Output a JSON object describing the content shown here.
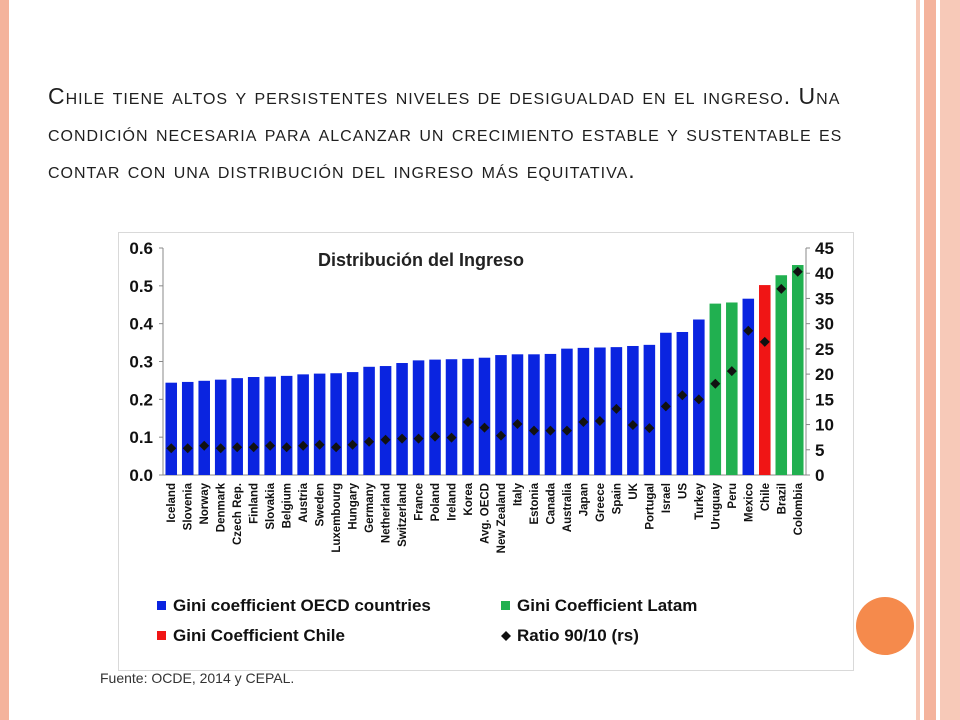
{
  "slide": {
    "title": "Chile tiene altos y persistentes niveles de desigualdad en el ingreso. Una condición necesaria para alcanzar un crecimiento estable y sustentable es contar con una distribución del ingreso más equitativa.",
    "source": "Fuente: OCDE, 2014 y CEPAL.",
    "colors": {
      "accent_border": "#f4b39c",
      "circle": "#f58a4c"
    }
  },
  "chart_data": {
    "type": "bar",
    "title": "Distribución del Ingreso",
    "categories": [
      "Iceland",
      "Slovenia",
      "Norway",
      "Denmark",
      "Czech Rep.",
      "Finland",
      "Slovakia",
      "Belgium",
      "Austria",
      "Sweden",
      "Luxembourg",
      "Hungary",
      "Germany",
      "Netherland",
      "Switzerland",
      "France",
      "Poland",
      "Ireland",
      "Korea",
      "Avg. OECD",
      "New Zealand",
      "Italy",
      "Estonia",
      "Canada",
      "Australia",
      "Japan",
      "Greece",
      "Spain",
      "UK",
      "Portugal",
      "Israel",
      "US",
      "Turkey",
      "Uruguay",
      "Peru",
      "Mexico",
      "Chile",
      "Brazil",
      "Colombia"
    ],
    "groups": [
      "oecd",
      "oecd",
      "oecd",
      "oecd",
      "oecd",
      "oecd",
      "oecd",
      "oecd",
      "oecd",
      "oecd",
      "oecd",
      "oecd",
      "oecd",
      "oecd",
      "oecd",
      "oecd",
      "oecd",
      "oecd",
      "oecd",
      "oecd",
      "oecd",
      "oecd",
      "oecd",
      "oecd",
      "oecd",
      "oecd",
      "oecd",
      "oecd",
      "oecd",
      "oecd",
      "oecd",
      "oecd",
      "oecd",
      "latam",
      "latam",
      "oecd",
      "chile",
      "latam",
      "latam"
    ],
    "series": [
      {
        "name": "Gini coefficient",
        "axis": "left",
        "values": [
          0.244,
          0.246,
          0.249,
          0.252,
          0.256,
          0.259,
          0.26,
          0.262,
          0.266,
          0.268,
          0.269,
          0.272,
          0.286,
          0.288,
          0.296,
          0.303,
          0.305,
          0.306,
          0.307,
          0.31,
          0.317,
          0.319,
          0.319,
          0.32,
          0.334,
          0.336,
          0.337,
          0.338,
          0.341,
          0.344,
          0.376,
          0.378,
          0.411,
          0.453,
          0.456,
          0.466,
          0.502,
          0.528,
          0.555
        ]
      },
      {
        "name": "Ratio 90/10 (rs)",
        "axis": "right",
        "values": [
          5.3,
          5.3,
          5.8,
          5.3,
          5.5,
          5.5,
          5.8,
          5.5,
          5.8,
          6.0,
          5.5,
          6.0,
          6.6,
          7.0,
          7.2,
          7.2,
          7.6,
          7.4,
          10.5,
          9.4,
          7.8,
          10.1,
          8.8,
          8.8,
          8.8,
          10.5,
          10.7,
          13.1,
          9.9,
          9.3,
          13.6,
          15.8,
          15.0,
          18.1,
          20.6,
          28.6,
          26.4,
          36.9,
          40.3
        ]
      }
    ],
    "y_left": {
      "ylim": [
        0,
        0.6
      ],
      "ticks": [
        "0.0",
        "0.1",
        "0.2",
        "0.3",
        "0.4",
        "0.5",
        "0.6"
      ]
    },
    "y_right": {
      "ylim": [
        0,
        45
      ],
      "ticks": [
        "0",
        "5",
        "10",
        "15",
        "20",
        "25",
        "30",
        "35",
        "40",
        "45"
      ]
    },
    "legend": [
      {
        "label": "Gini coefficient OECD countries",
        "marker": "square",
        "color": "#0a24e0"
      },
      {
        "label": "Gini Coefficient Latam",
        "marker": "square",
        "color": "#21b050"
      },
      {
        "label": "Gini Coefficient Chile",
        "marker": "square",
        "color": "#f01515"
      },
      {
        "label": "Ratio 90/10 (rs)",
        "marker": "diamond",
        "color": "#111111"
      }
    ],
    "legend_position": "bottom",
    "colors": {
      "oecd": "#0a24e0",
      "latam": "#21b050",
      "chile": "#f01515",
      "ratio": "#111111"
    },
    "grid": false
  }
}
